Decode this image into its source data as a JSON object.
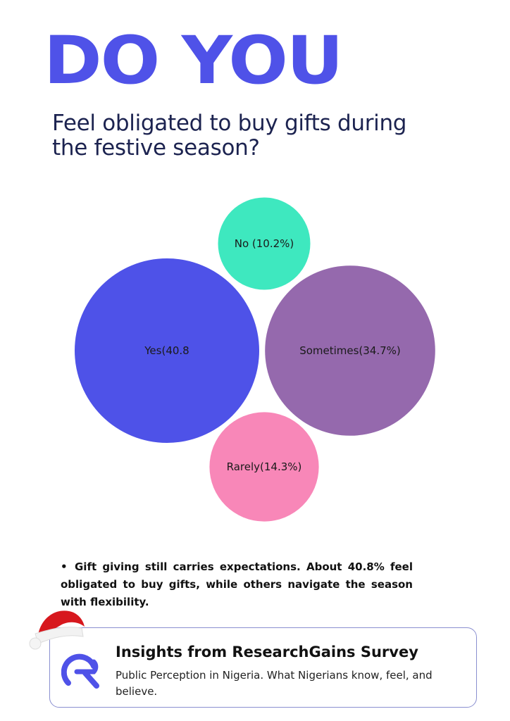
{
  "header": {
    "headline": "DO YOU",
    "question": "Feel obligated to buy gifts during the festive season?"
  },
  "chart_data": {
    "type": "bubble",
    "items": [
      {
        "label": "No (10.2%)",
        "value": 10.2,
        "color": "#3ee8bf"
      },
      {
        "label": "Yes(40.8",
        "value": 40.8,
        "color": "#4e52e8"
      },
      {
        "label": "Sometimes(34.7%)",
        "value": 34.7,
        "color": "#9569ad"
      },
      {
        "label": "Rarely(14.3%)",
        "value": 14.3,
        "color": "#f887b8"
      }
    ]
  },
  "summary": {
    "bullet_symbol": "•",
    "text": "Gift giving still carries expectations. About 40.8% feel obligated to buy gifts, while others navigate the season with flexibility."
  },
  "footer_card": {
    "title": "Insights from ResearchGains Survey",
    "description": "Public Perception in Nigeria. What Nigerians know, feel, and believe.",
    "logo_icon": "researchgains-logo-icon",
    "accent": "#4f52e8"
  },
  "decoration": {
    "hat_icon": "santa-hat-icon"
  }
}
